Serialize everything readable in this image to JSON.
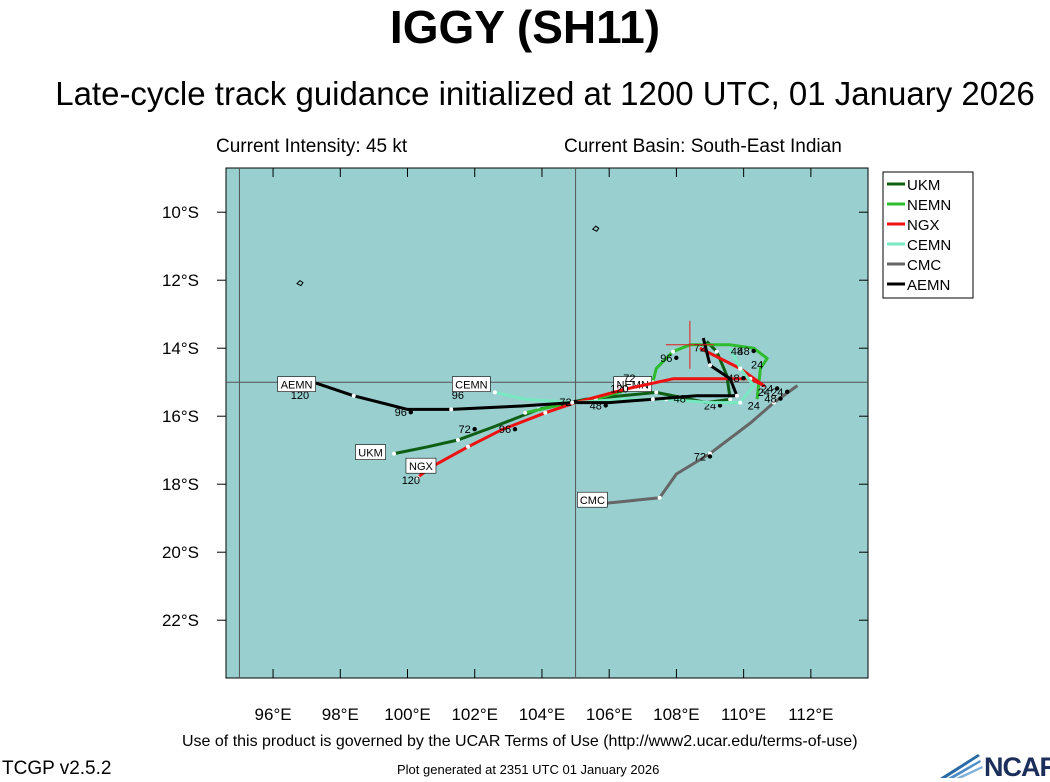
{
  "title": "IGGY (SH11)",
  "subtitle": "Late-cycle track guidance initialized at 1200 UTC, 01 January 2026",
  "current_intensity": "Current Intensity: 45 kt",
  "current_basin": "Current Basin: South-East Indian",
  "footer": {
    "terms": "Use of this product is governed by the UCAR Terms of Use (http://www2.ucar.edu/terms-of-use)",
    "version": "TCGP v2.5.2",
    "generated": "Plot generated at 2351 UTC   01 January 2026",
    "logo": "NCAR"
  },
  "colors": {
    "ocean": "#99cfcf",
    "grid": "#555555",
    "label_bg": "#ffffff"
  },
  "chart_data": {
    "type": "line",
    "title": "IGGY (SH11)",
    "xlim": [
      94.6,
      113.7
    ],
    "ylim": [
      -23.7,
      -8.7
    ],
    "x_ticks": [
      96,
      98,
      100,
      102,
      104,
      106,
      108,
      110,
      112
    ],
    "x_tick_labels": [
      "96°E",
      "98°E",
      "100°E",
      "102°E",
      "104°E",
      "106°E",
      "108°E",
      "110°E",
      "112°E"
    ],
    "y_ticks": [
      -10,
      -12,
      -14,
      -16,
      -18,
      -20,
      -22
    ],
    "y_tick_labels": [
      "10°S",
      "12°S",
      "14°S",
      "16°S",
      "18°S",
      "20°S",
      "22°S"
    ],
    "grid_lon": [
      95,
      105,
      115
    ],
    "grid_lat": [
      -5,
      -15,
      -25
    ],
    "legend_position": "top-right outside",
    "initial_position": {
      "lon": 108.4,
      "lat": -13.9
    },
    "series": [
      {
        "name": "UKM",
        "color": "#0e5e14",
        "points": [
          [
            108.9,
            -13.8
          ],
          [
            109.2,
            -14.1
          ],
          [
            109.5,
            -14.8
          ],
          [
            109.6,
            -15.5
          ],
          [
            108.9,
            -15.6
          ],
          [
            107.4,
            -15.3
          ],
          [
            105.3,
            -15.5
          ],
          [
            103.9,
            -15.8
          ],
          [
            102.6,
            -16.3
          ],
          [
            101.5,
            -16.7
          ],
          [
            100.6,
            -16.9
          ],
          [
            99.6,
            -17.1
          ]
        ],
        "labels": [
          {
            "text": "24",
            "lon": 109.0,
            "lat": -15.8
          },
          {
            "text": "72",
            "lon": 101.7,
            "lat": -16.5
          }
        ],
        "end_label": {
          "text": "UKM",
          "lon": 98.9,
          "lat": -17.1
        }
      },
      {
        "name": "NEMN",
        "color": "#2ebb2e",
        "points": [
          [
            108.4,
            -13.9
          ],
          [
            107.9,
            -14.1
          ],
          [
            107.4,
            -14.6
          ],
          [
            107.3,
            -15.0
          ],
          [
            106.6,
            -15.2
          ],
          [
            105.6,
            -15.5
          ],
          [
            104.4,
            -15.7
          ],
          [
            103.5,
            -15.9
          ]
        ],
        "labels": [
          {
            "text": "96",
            "lon": 107.7,
            "lat": -14.4
          }
        ],
        "end_label": {
          "text": "NEMN",
          "lon": 106.7,
          "lat": -15.1
        },
        "extra": [
          [
            108.4,
            -13.9
          ],
          [
            109.6,
            -13.9
          ],
          [
            110.3,
            -14.0
          ],
          [
            110.7,
            -14.3
          ],
          [
            110.5,
            -14.6
          ],
          [
            110.4,
            -15.5
          ]
        ]
      },
      {
        "name": "NGX",
        "color": "#ee1111",
        "points": [
          [
            108.7,
            -14.0
          ],
          [
            109.9,
            -14.6
          ],
          [
            110.6,
            -15.1
          ],
          [
            110.2,
            -14.9
          ],
          [
            107.9,
            -14.9
          ],
          [
            106.5,
            -15.2
          ],
          [
            105.0,
            -15.6
          ],
          [
            104.1,
            -15.9
          ],
          [
            102.8,
            -16.4
          ],
          [
            101.8,
            -16.9
          ],
          [
            100.7,
            -17.5
          ],
          [
            100.3,
            -17.8
          ]
        ],
        "labels": [
          {
            "text": "48",
            "lon": 105.6,
            "lat": -15.8
          },
          {
            "text": "96",
            "lon": 102.9,
            "lat": -16.5
          }
        ],
        "end_label": {
          "text": "NGX",
          "lon": 100.4,
          "lat": -17.5
        },
        "end_hour": {
          "text": "120",
          "lon": 100.1,
          "lat": -17.9
        }
      },
      {
        "name": "CEMN",
        "color": "#77e8c0",
        "points": [
          [
            109.6,
            -14.0
          ],
          [
            109.9,
            -14.6
          ],
          [
            110.3,
            -15.1
          ],
          [
            109.9,
            -15.6
          ],
          [
            109.0,
            -15.6
          ],
          [
            107.7,
            -15.5
          ],
          [
            106.4,
            -15.5
          ],
          [
            105.0,
            -15.6
          ],
          [
            103.5,
            -15.5
          ],
          [
            102.6,
            -15.3
          ]
        ],
        "labels": [
          {
            "text": "48",
            "lon": 110.0,
            "lat": -14.2
          },
          {
            "text": "72",
            "lon": 104.7,
            "lat": -15.7
          }
        ],
        "end_label": {
          "text": "CEMN",
          "lon": 101.9,
          "lat": -15.1
        },
        "end_hour": {
          "text": "96",
          "lon": 101.5,
          "lat": -15.4
        }
      },
      {
        "name": "CMC",
        "color": "#666666",
        "points": [
          [
            111.6,
            -15.1
          ],
          [
            110.9,
            -15.6
          ],
          [
            110.2,
            -16.2
          ],
          [
            109.0,
            -17.1
          ],
          [
            108.0,
            -17.7
          ],
          [
            107.5,
            -18.4
          ],
          [
            106.5,
            -18.5
          ],
          [
            105.5,
            -18.6
          ]
        ],
        "labels": [
          {
            "text": "24",
            "lon": 111.0,
            "lat": -15.4
          },
          {
            "text": "48",
            "lon": 110.8,
            "lat": -15.6
          },
          {
            "text": "72",
            "lon": 108.7,
            "lat": -17.3
          }
        ],
        "end_label": {
          "text": "CMC",
          "lon": 105.5,
          "lat": -18.5
        }
      },
      {
        "name": "AEMN",
        "color": "#000000",
        "points": [
          [
            108.8,
            -13.7
          ],
          [
            109.0,
            -14.5
          ],
          [
            109.6,
            -14.9
          ],
          [
            109.8,
            -15.4
          ],
          [
            108.6,
            -15.4
          ],
          [
            107.3,
            -15.5
          ],
          [
            106.0,
            -15.6
          ],
          [
            104.9,
            -15.6
          ],
          [
            103.4,
            -15.7
          ],
          [
            101.3,
            -15.8
          ],
          [
            100.0,
            -15.8
          ],
          [
            98.4,
            -15.4
          ],
          [
            97.2,
            -15.0
          ]
        ],
        "labels": [
          {
            "text": "24",
            "lon": 110.7,
            "lat": -15.3
          },
          {
            "text": "48",
            "lon": 109.7,
            "lat": -15.0
          },
          {
            "text": "96",
            "lon": 99.8,
            "lat": -16.0
          }
        ],
        "end_label": {
          "text": "AEMN",
          "lon": 96.7,
          "lat": -15.1
        },
        "end_hour": {
          "text": "120",
          "lon": 96.8,
          "lat": -15.4
        }
      }
    ],
    "hour_labels": [
      {
        "text": "72",
        "lon": 108.7,
        "lat": -14.1
      },
      {
        "text": "48",
        "lon": 109.8,
        "lat": -14.2
      },
      {
        "text": "24",
        "lon": 110.4,
        "lat": -14.6
      },
      {
        "text": "48",
        "lon": 108.1,
        "lat": -15.6
      },
      {
        "text": "24",
        "lon": 110.3,
        "lat": -15.8
      },
      {
        "text": "24",
        "lon": 110.6,
        "lat": -15.4
      },
      {
        "text": "120",
        "lon": 106.3,
        "lat": -15.3
      },
      {
        "text": "72",
        "lon": 106.6,
        "lat": -15.0
      }
    ],
    "islands": [
      {
        "name": "christmas-island",
        "lon": 105.6,
        "lat": -10.5
      },
      {
        "name": "cocos-islands",
        "lon": 96.8,
        "lat": -12.1
      }
    ]
  }
}
